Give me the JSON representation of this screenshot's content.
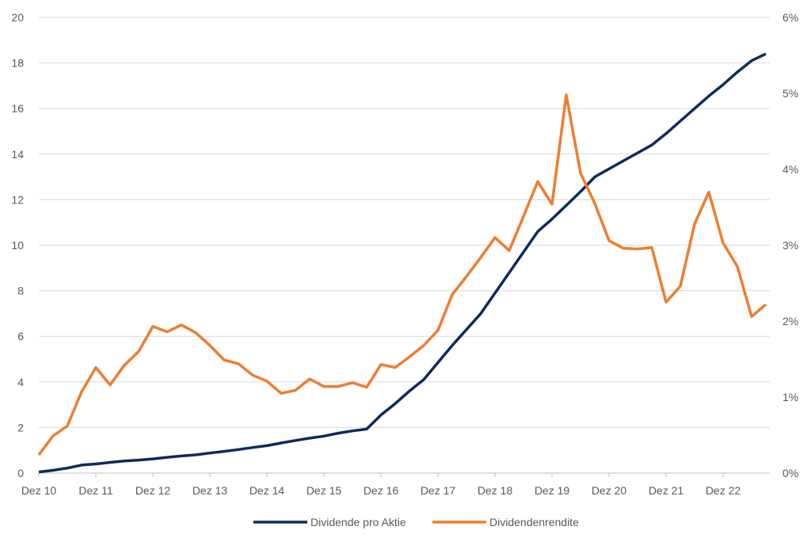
{
  "chart_data": {
    "type": "line",
    "title": "",
    "x_tick_labels": [
      "Dez 10",
      "Dez 11",
      "Dez 12",
      "Dez 13",
      "Dez 14",
      "Dez 15",
      "Dez 16",
      "Dez 17",
      "Dez 18",
      "Dez 19",
      "Dez 20",
      "Dez 21",
      "Dez 22"
    ],
    "x_frequency": "quarterly, Dez 10 to Sep 23",
    "left_axis": {
      "ylim": [
        0,
        20
      ],
      "ticks": [
        0,
        2,
        4,
        6,
        8,
        10,
        12,
        14,
        16,
        18,
        20
      ],
      "label": ""
    },
    "right_axis": {
      "ylim": [
        0,
        6
      ],
      "ticks": [
        "0%",
        "1%",
        "2%",
        "3%",
        "4%",
        "5%",
        "6%"
      ],
      "label": ""
    },
    "grid": true,
    "legend_position": "bottom",
    "series": [
      {
        "name": "Dividende pro Aktie",
        "axis": "left",
        "color": "#0e2a5c",
        "values": [
          0.05,
          0.12,
          0.22,
          0.35,
          0.4,
          0.47,
          0.53,
          0.57,
          0.62,
          0.69,
          0.75,
          0.8,
          0.88,
          0.95,
          1.03,
          1.12,
          1.2,
          1.32,
          1.43,
          1.53,
          1.62,
          1.75,
          1.85,
          1.93,
          2.55,
          3.05,
          3.6,
          4.1,
          4.85,
          5.6,
          6.3,
          7.0,
          7.9,
          8.8,
          9.7,
          10.6,
          11.15,
          11.75,
          12.35,
          13.0,
          13.35,
          13.7,
          14.05,
          14.4,
          14.9,
          15.45,
          16.0,
          16.55,
          17.05,
          17.6,
          18.1,
          18.4
        ]
      },
      {
        "name": "Dividendenrendite",
        "axis": "right",
        "color": "#ed7d31",
        "values": [
          0.24,
          0.49,
          0.62,
          1.07,
          1.39,
          1.16,
          1.42,
          1.6,
          1.93,
          1.86,
          1.95,
          1.85,
          1.68,
          1.49,
          1.44,
          1.29,
          1.21,
          1.05,
          1.09,
          1.24,
          1.14,
          1.14,
          1.19,
          1.13,
          1.43,
          1.39,
          1.53,
          1.68,
          1.88,
          2.35,
          2.59,
          2.84,
          3.1,
          2.93,
          3.38,
          3.84,
          3.54,
          4.98,
          3.95,
          3.55,
          3.06,
          2.96,
          2.95,
          2.97,
          2.25,
          2.46,
          3.28,
          3.7,
          3.03,
          2.72,
          2.06,
          2.22
        ]
      }
    ]
  }
}
